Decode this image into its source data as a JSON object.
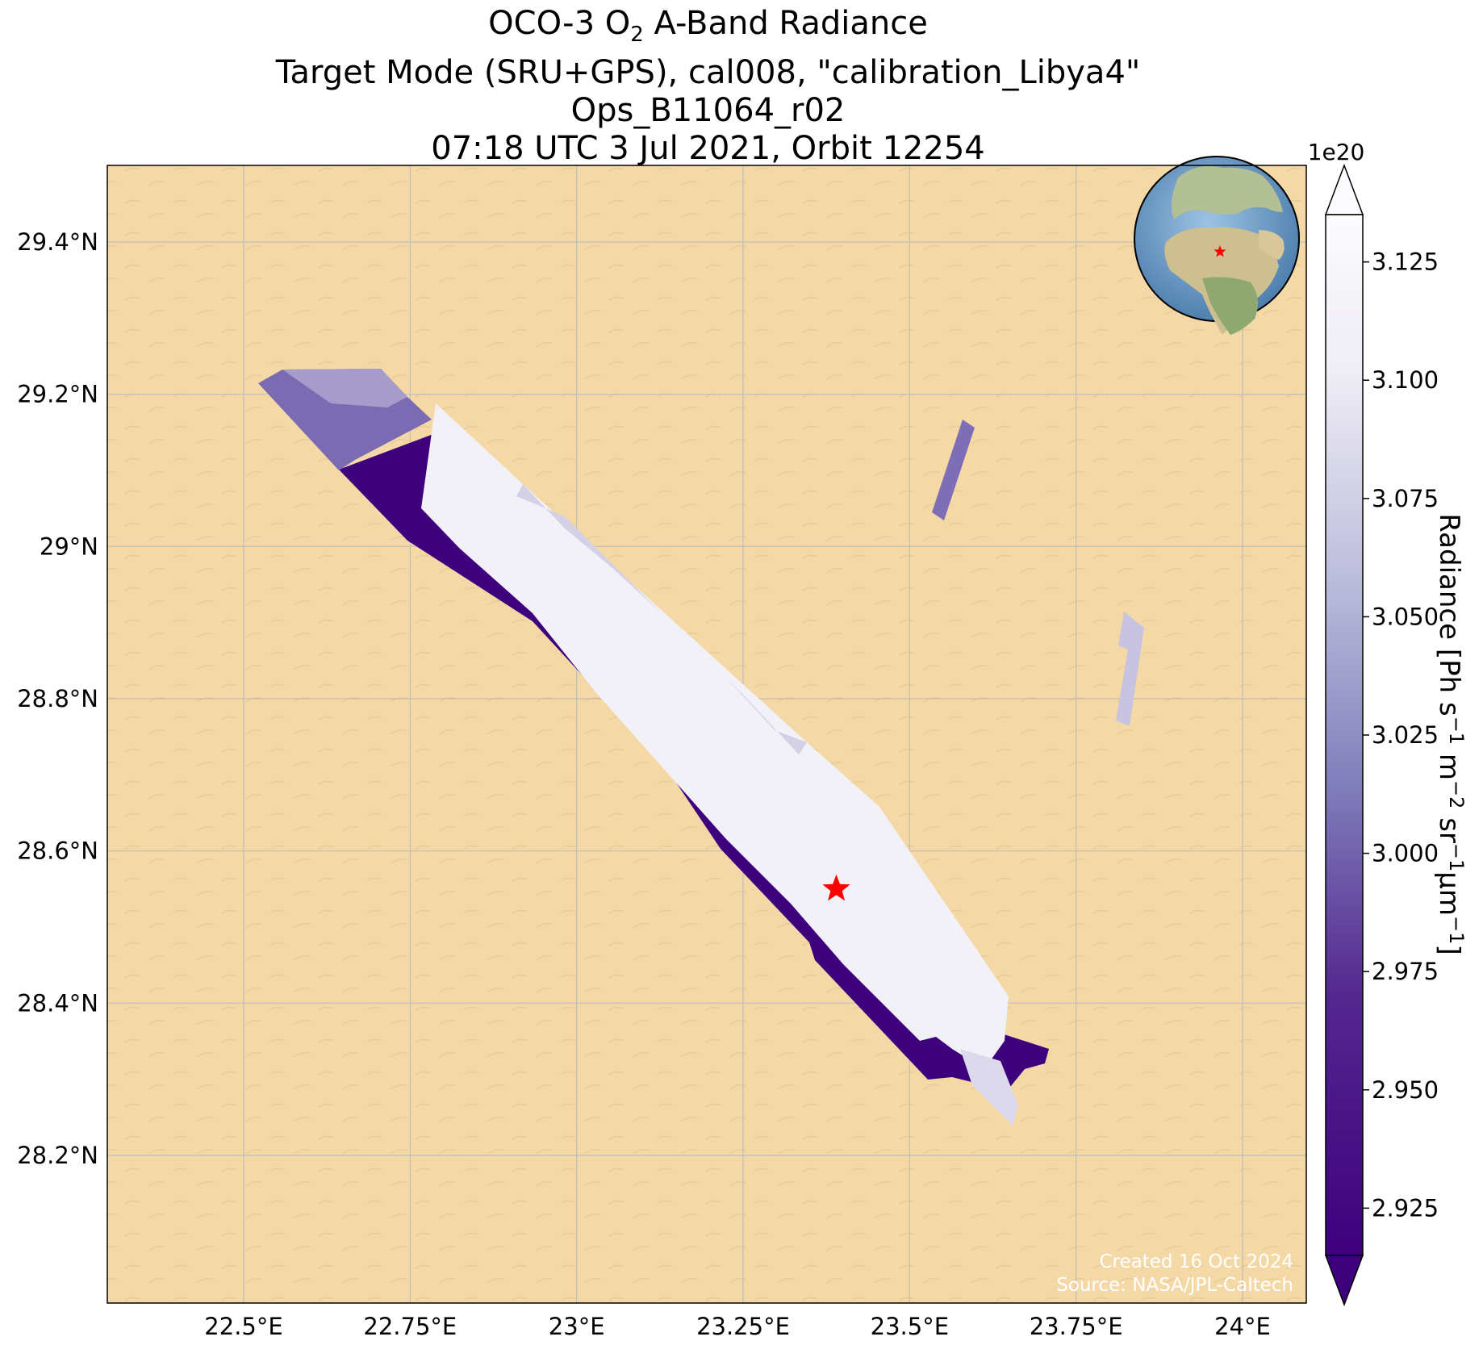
{
  "title": {
    "line1_pre": "OCO-3 O",
    "line1_sub": "2",
    "line1_post": " A-Band Radiance",
    "line2": "Target Mode (SRU+GPS), cal008, \"calibration_Libya4\"",
    "line3": "Ops_B11064_r02",
    "line4": "07:18 UTC 3 Jul 2021, Orbit 12254"
  },
  "map": {
    "x_ticks": [
      {
        "value": 22.5,
        "label": "22.5°E"
      },
      {
        "value": 22.75,
        "label": "22.75°E"
      },
      {
        "value": 23.0,
        "label": "23°E"
      },
      {
        "value": 23.25,
        "label": "23.25°E"
      },
      {
        "value": 23.5,
        "label": "23.5°E"
      },
      {
        "value": 23.75,
        "label": "23.75°E"
      },
      {
        "value": 24.0,
        "label": "24°E"
      }
    ],
    "y_ticks": [
      {
        "value": 28.2,
        "label": "28.2°N"
      },
      {
        "value": 28.4,
        "label": "28.4°N"
      },
      {
        "value": 28.6,
        "label": "28.6°N"
      },
      {
        "value": 28.8,
        "label": "28.8°N"
      },
      {
        "value": 29.0,
        "label": "29°N"
      },
      {
        "value": 29.2,
        "label": "29.2°N"
      },
      {
        "value": 29.4,
        "label": "29.4°N"
      }
    ],
    "target_marker": {
      "lon": 23.39,
      "lat": 28.55,
      "symbol": "star",
      "color": "#ff0000"
    },
    "background_color": "#f4d9a6",
    "grid_color": "#bdbdbd",
    "inset_globe": {
      "center": "Libya",
      "marker_color": "#ff0000",
      "ocean_color": "#6f9fc8",
      "land_color": "#a9b88a"
    }
  },
  "colorbar": {
    "label_pre": "Radiance [Ph s",
    "label_full": "Radiance [Ph s⁻¹ m⁻² sr⁻¹μm⁻¹]",
    "multiplier": "1e20",
    "min": 2.915,
    "max": 3.135,
    "extend": "both",
    "cmap": "Purples_r",
    "ticks": [
      {
        "value": 2.925,
        "label": "2.925"
      },
      {
        "value": 2.95,
        "label": "2.950"
      },
      {
        "value": 2.975,
        "label": "2.975"
      },
      {
        "value": 3.0,
        "label": "3.000"
      },
      {
        "value": 3.025,
        "label": "3.025"
      },
      {
        "value": 3.05,
        "label": "3.050"
      },
      {
        "value": 3.075,
        "label": "3.075"
      },
      {
        "value": 3.1,
        "label": "3.100"
      },
      {
        "value": 3.125,
        "label": "3.125"
      }
    ]
  },
  "credits": {
    "line1": "Created 16 Oct 2024",
    "line2": "Source: NASA/JPL-Caltech"
  }
}
